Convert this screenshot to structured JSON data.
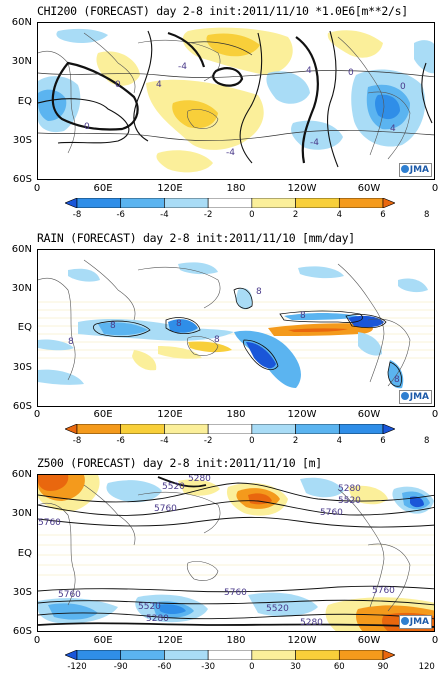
{
  "panels": [
    {
      "title": "CHI200 (FORECAST) day 2-8 init:2011/11/10  *1.0E6[m**2/s]",
      "lat_labels": [
        "60N",
        "30N",
        "EQ",
        "30S",
        "60S"
      ],
      "lon_labels": [
        "0",
        "60E",
        "120E",
        "180",
        "120W",
        "60W",
        "0"
      ],
      "colorbar_ticks": [
        "-8",
        "-6",
        "-4",
        "-2",
        "0",
        "2",
        "4",
        "6",
        "8"
      ],
      "colorbar_colors": [
        "#1a56d8",
        "#2f8ee8",
        "#5bb4f0",
        "#a9dcf6",
        "#ffffff",
        "#fbef9a",
        "#f8cf3a",
        "#f49a1c",
        "#e9670e"
      ],
      "contour_labels": [
        "0",
        "4",
        "-4",
        "0",
        "-4",
        "4",
        "0",
        "4",
        "-4",
        "0"
      ],
      "logo": "JMA"
    },
    {
      "title": "RAIN (FORECAST) day 2-8 init:2011/11/10  [mm/day]",
      "lat_labels": [
        "60N",
        "30N",
        "EQ",
        "30S",
        "60S"
      ],
      "lon_labels": [
        "0",
        "60E",
        "120E",
        "180",
        "120W",
        "60W",
        "0"
      ],
      "colorbar_ticks": [
        "-8",
        "-6",
        "-4",
        "-2",
        "0",
        "2",
        "4",
        "6",
        "8"
      ],
      "colorbar_colors": [
        "#e9670e",
        "#f49a1c",
        "#f8cf3a",
        "#fbef9a",
        "#ffffff",
        "#a9dcf6",
        "#5bb4f0",
        "#2f8ee8",
        "#1a56d8"
      ],
      "contour_labels": [
        "8",
        "8",
        "8",
        "8",
        "8",
        "8",
        "8"
      ],
      "logo": "JMA"
    },
    {
      "title": "Z500 (FORECAST) day 2-8 init:2011/11/10  [m]",
      "lat_labels": [
        "60N",
        "30N",
        "EQ",
        "30S",
        "60S"
      ],
      "lon_labels": [
        "0",
        "60E",
        "120E",
        "180",
        "120W",
        "60W",
        "0"
      ],
      "colorbar_ticks": [
        "-120",
        "-90",
        "-60",
        "-30",
        "0",
        "30",
        "60",
        "90",
        "120"
      ],
      "colorbar_colors": [
        "#1a56d8",
        "#2f8ee8",
        "#5bb4f0",
        "#a9dcf6",
        "#ffffff",
        "#fbef9a",
        "#f8cf3a",
        "#f49a1c",
        "#e9670e"
      ],
      "contour_labels": [
        "5280",
        "5520",
        "5280",
        "5520",
        "5760",
        "5760",
        "5760",
        "5760",
        "5760",
        "5520",
        "5280",
        "5520",
        "5280",
        "5760"
      ],
      "logo": "JMA"
    }
  ]
}
